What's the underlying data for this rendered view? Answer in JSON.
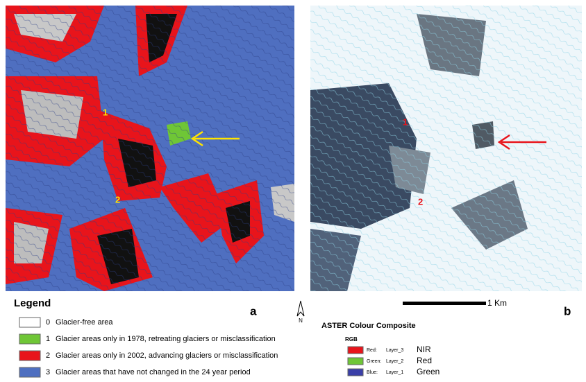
{
  "panel_a": {
    "letter": "a",
    "markers": [
      "1",
      "2"
    ]
  },
  "panel_b": {
    "letter": "b",
    "markers": [
      "1",
      "2"
    ]
  },
  "north": "N",
  "scale": "1 Km",
  "legend": {
    "title": "Legend",
    "items": [
      {
        "code": "0",
        "text": "Glacier-free area",
        "color": "#ffffff"
      },
      {
        "code": "1",
        "text": "Glacier areas only in 1978, retreating glaciers or misclassification",
        "color": "#6fc636"
      },
      {
        "code": "2",
        "text": "Glacier areas only in 2002, advancing glaciers or misclassification",
        "color": "#e8141b"
      },
      {
        "code": "3",
        "text": "Glacier areas that have not changed in the 24 year period",
        "color": "#4f6fc0"
      }
    ]
  },
  "composite": {
    "title": "ASTER Colour Composite",
    "subtitle": "RGB",
    "items": [
      {
        "channel": "Red:",
        "layer": "Layer_3",
        "band": "NIR",
        "color": "#e8141b"
      },
      {
        "channel": "Green:",
        "layer": "Layer_2",
        "band": "Red",
        "color": "#6fc636"
      },
      {
        "channel": "Blue:",
        "layer": "Layer_1",
        "band": "Green",
        "color": "#3a3fa8"
      }
    ]
  }
}
